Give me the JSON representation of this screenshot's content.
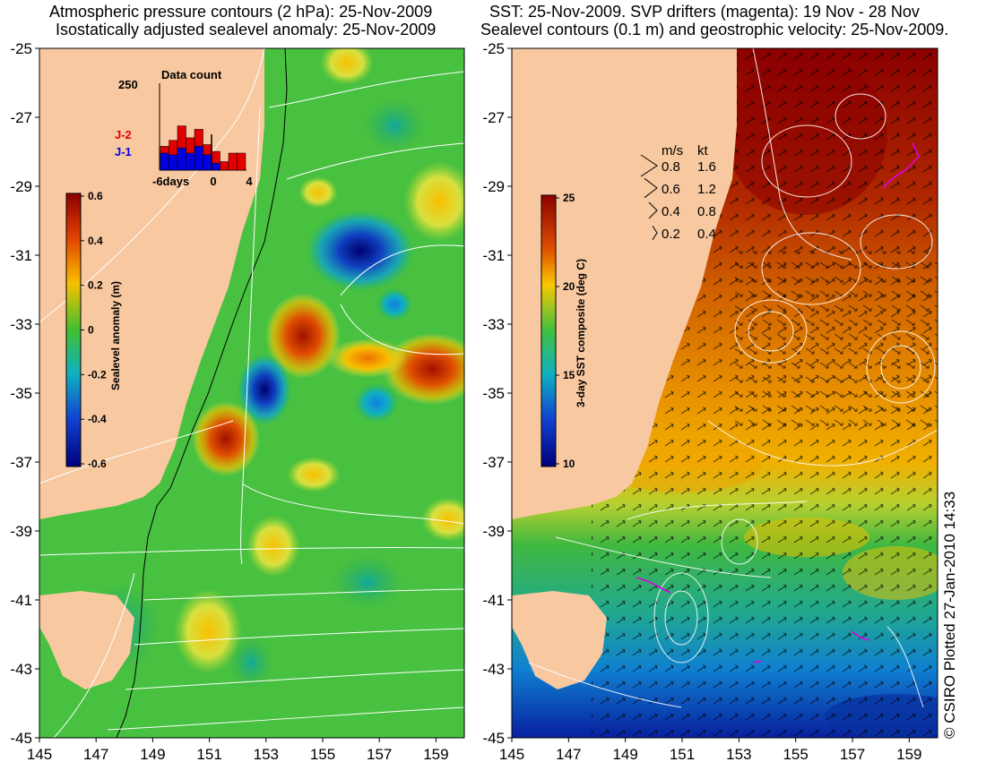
{
  "left_panel": {
    "title_line1": "Atmospheric pressure contours (2 hPa): 25-Nov-2009",
    "title_line2": "Isostatically adjusted sealevel anomaly: 25-Nov-2009",
    "x_ticks": [
      "145",
      "147",
      "149",
      "151",
      "153",
      "155",
      "157",
      "159"
    ],
    "y_ticks": [
      "-25",
      "-27",
      "-29",
      "-31",
      "-33",
      "-35",
      "-37",
      "-39",
      "-41",
      "-43",
      "-45"
    ],
    "colorbar": {
      "label": "Sealevel anomaly (m)",
      "ticks": [
        "0.6",
        "0.4",
        "0.2",
        "0",
        "-0.2",
        "-0.4",
        "-0.6"
      ],
      "colors": [
        "#8b0000",
        "#d42000",
        "#f07000",
        "#f8c000",
        "#e8e840",
        "#70d020",
        "#20b040",
        "#10b090",
        "#10b0d0",
        "#1070e0",
        "#1030b0",
        "#00007a"
      ]
    },
    "inset": {
      "title": "Data count",
      "ymax_label": "250",
      "x_labels": [
        "-6days",
        "0",
        "4"
      ],
      "legend": [
        {
          "label": "J-2",
          "color": "#e00000"
        },
        {
          "label": "J-1",
          "color": "#0000e0"
        }
      ]
    }
  },
  "right_panel": {
    "title_line1": "SST: 25-Nov-2009. SVP drifters (magenta): 19 Nov - 28 Nov",
    "title_line2": "Sealevel contours (0.1 m) and geostrophic velocity: 25-Nov-2009.",
    "x_ticks": [
      "145",
      "147",
      "149",
      "151",
      "153",
      "155",
      "157",
      "159"
    ],
    "y_ticks": [
      "-25",
      "-27",
      "-29",
      "-31",
      "-33",
      "-35",
      "-37",
      "-39",
      "-41",
      "-43",
      "-45"
    ],
    "colorbar": {
      "label": "3-day SST composite (deg C)",
      "ticks": [
        "25",
        "20",
        "15",
        "10"
      ],
      "colors": [
        "#8b0000",
        "#c02000",
        "#e05000",
        "#f09000",
        "#f8c800",
        "#c0e030",
        "#40c040",
        "#10b090",
        "#10a0d0",
        "#1060e0",
        "#1030b0",
        "#00007a"
      ]
    },
    "velocity_legend": {
      "header_ms": "m/s",
      "header_kt": "kt",
      "rows": [
        {
          "ms": "0.8",
          "kt": "1.6"
        },
        {
          "ms": "0.6",
          "kt": "1.2"
        },
        {
          "ms": "0.4",
          "kt": "0.8"
        },
        {
          "ms": "0.2",
          "kt": "0.4"
        }
      ]
    }
  },
  "credit": "© CSIRO Plotted 27-Jan-2010 14:33",
  "land_color": "#f8c8a0"
}
